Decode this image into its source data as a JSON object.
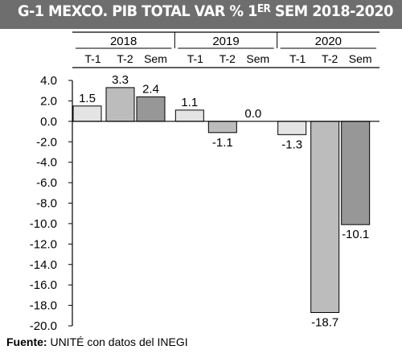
{
  "title": {
    "main": "G-1 MEXCO. PIB TOTAL VAR % 1",
    "superscript": "ER",
    "rest": " SEM 2018-2020"
  },
  "source": {
    "label": "Fuente:",
    "text": " UNITÉ con datos del INEGI"
  },
  "colors": {
    "title_bg": "#6e6e6e",
    "T-1": "#e4e4e4",
    "T-2": "#bcbcbc",
    "Sem": "#979797"
  },
  "chart_data": {
    "type": "bar",
    "groups": [
      "2018",
      "2019",
      "2020"
    ],
    "categories": [
      "T-1",
      "T-2",
      "Sem"
    ],
    "values": [
      [
        1.5,
        3.3,
        2.4
      ],
      [
        1.1,
        -1.1,
        0.0
      ],
      [
        -1.3,
        -18.7,
        -10.1
      ]
    ],
    "data_labels": [
      [
        "1.5",
        "3.3",
        "2.4"
      ],
      [
        "1.1",
        "-1.1",
        "0.0"
      ],
      [
        "-1.3",
        "-18.7",
        "-10.1"
      ]
    ],
    "ylim": [
      -20,
      4
    ],
    "yticks": [
      4,
      2,
      0,
      -2,
      -4,
      -6,
      -8,
      -10,
      -12,
      -14,
      -16,
      -18,
      -20
    ],
    "ytick_labels": [
      "4.0",
      "2.0",
      "0.0",
      "-2.0",
      "-4.0",
      "-6.0",
      "-8.0",
      "-10.0",
      "-12.0",
      "-14.0",
      "-16.0",
      "-18.0",
      "-20.0"
    ],
    "grid": false,
    "legend": "none"
  }
}
